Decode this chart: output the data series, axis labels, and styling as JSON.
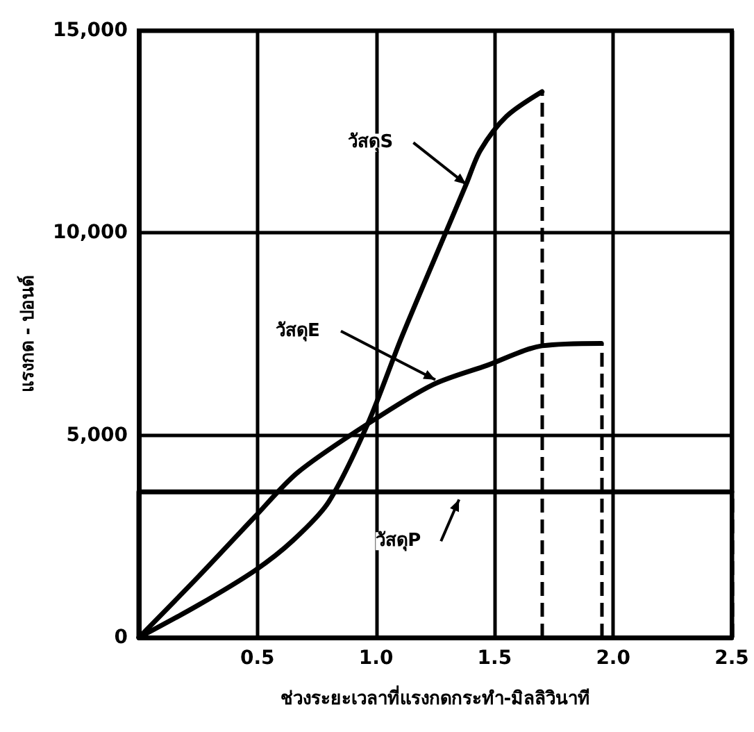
{
  "chart_data": {
    "type": "line",
    "xlabel": "ช่วงระยะเวลาที่แรงกดกระทำ-มิลลิวินาที",
    "ylabel": "แรงกด - ปอนด์",
    "xlim": [
      0,
      2.5
    ],
    "xticks": [
      {
        "value": 0,
        "label": null
      },
      {
        "value": 0.5,
        "label": "0.5"
      },
      {
        "value": 1,
        "label": "1.0"
      },
      {
        "value": 1.5,
        "label": "1.5"
      },
      {
        "value": 2,
        "label": "2.0"
      },
      {
        "value": 2.5,
        "label": "2.5"
      }
    ],
    "ylim": [
      0,
      15000
    ],
    "yticks": [
      0,
      {
        "value": 5000,
        "label": "5,000"
      },
      {
        "value": 10000,
        "label": "10,000"
      },
      {
        "value": 15000,
        "label": "15,000"
      }
    ],
    "grid": true,
    "marker": "none",
    "line_style": "solid",
    "series": [
      {
        "color": "#000000",
        "x": [
          0,
          0.25,
          0.49,
          0.65,
          0.8,
          0.965,
          1.11,
          1.31,
          1.38,
          1.44,
          1.55,
          1.7
        ],
        "values": [
          0,
          800,
          1660,
          2400,
          3350,
          5280,
          7450,
          10230,
          11200,
          12040,
          12880,
          13490
        ]
      },
      {
        "color": "#000000",
        "x": [
          0,
          0.25,
          0.49,
          0.67,
          0.965,
          1.24,
          1.47,
          1.7,
          1.95
        ],
        "values": [
          0,
          1500,
          2990,
          4080,
          5280,
          6250,
          6730,
          7210,
          7270
        ]
      },
      {
        "color": "#000000",
        "x": [
          0,
          0,
          2.5
        ],
        "values": [
          0,
          3600,
          3600
        ]
      }
    ],
    "ref_lines": [
      {
        "axis": "x",
        "value": 1.7,
        "line_style": "dashed",
        "color": "#000000"
      },
      {
        "axis": "x",
        "value": 1.95,
        "line_style": "dashed",
        "color": "#000000"
      },
      {
        "axis": "x",
        "value": 2.5,
        "line_style": "dashed",
        "color": "#000000"
      }
    ],
    "annotations": [
      {
        "text": "วัสดุS",
        "x": 1.38,
        "y": 11200
      },
      {
        "text": "วัสดุE",
        "x": 1.25,
        "y": 6370
      },
      {
        "text": "วัสดุP",
        "x": 1.35,
        "y": 3410
      }
    ]
  }
}
